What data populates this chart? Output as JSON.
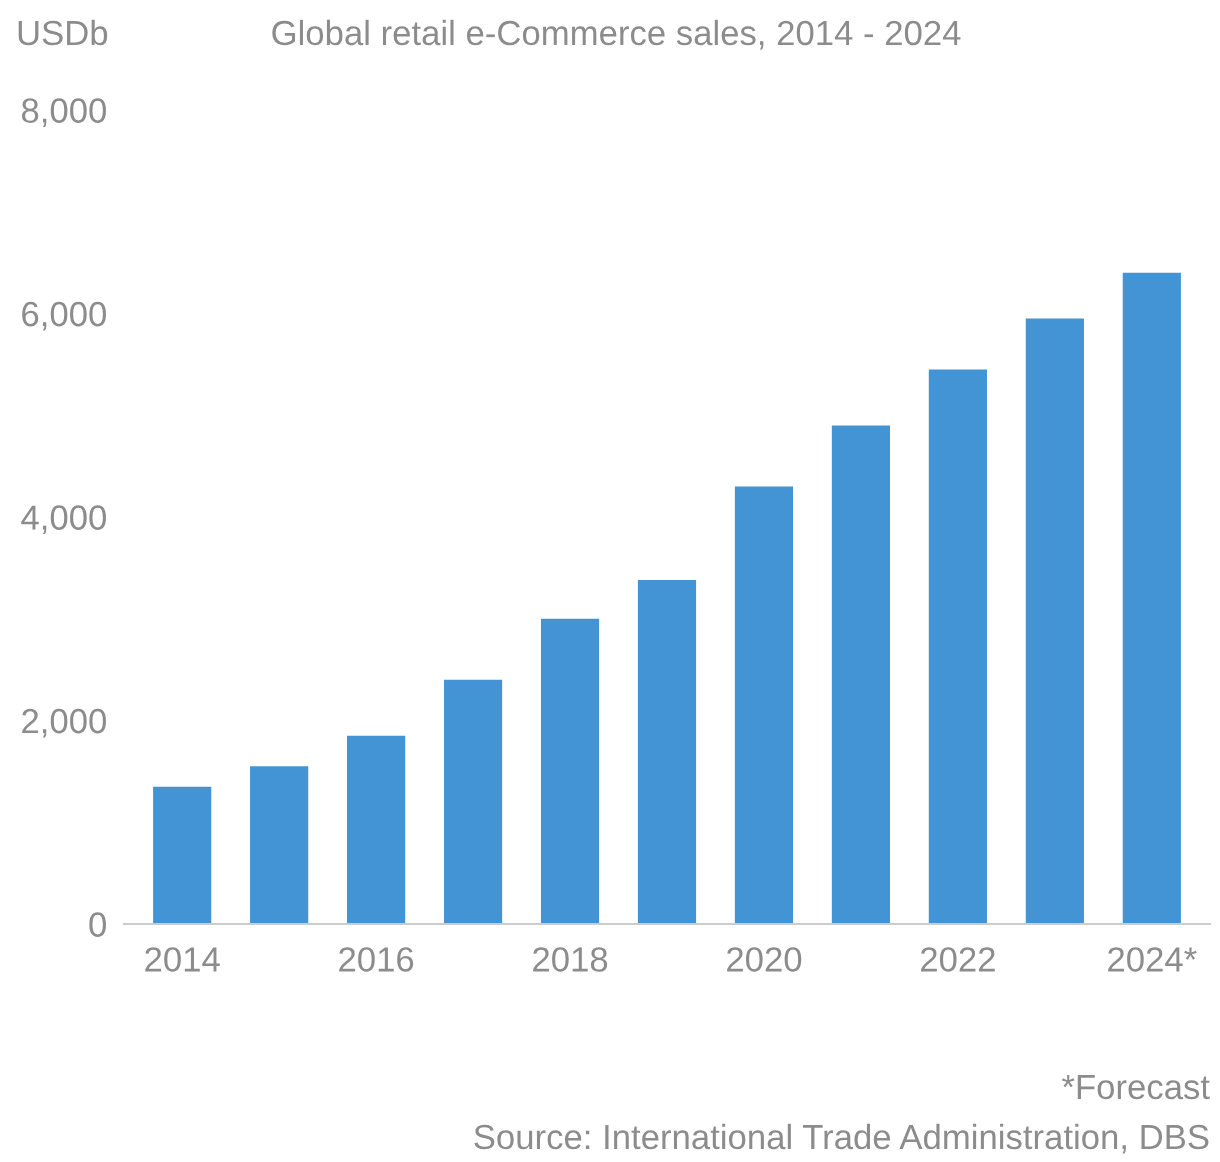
{
  "chart_data": {
    "type": "bar",
    "title": "Global retail e-Commerce sales, 2014 - 2024",
    "ylabel": "USDb",
    "categories": [
      "2014",
      null,
      "2016",
      null,
      "2018",
      null,
      "2020",
      null,
      "2022",
      null,
      "2024*"
    ],
    "values": [
      1350,
      1550,
      1850,
      2400,
      3000,
      3380,
      4300,
      4900,
      5450,
      5950,
      6400
    ],
    "color": "#4394d4",
    "ylim": [
      0,
      8000
    ],
    "yticks": [
      {
        "value": 0,
        "label": "0"
      },
      {
        "value": 2000,
        "label": "2,000"
      },
      {
        "value": 4000,
        "label": "4,000"
      },
      {
        "value": 6000,
        "label": "6,000"
      },
      {
        "value": 8000,
        "label": "8,000"
      }
    ],
    "grid": false,
    "legend": false,
    "annotations": [
      "*Forecast",
      "Source: International Trade Administration, DBS"
    ]
  }
}
